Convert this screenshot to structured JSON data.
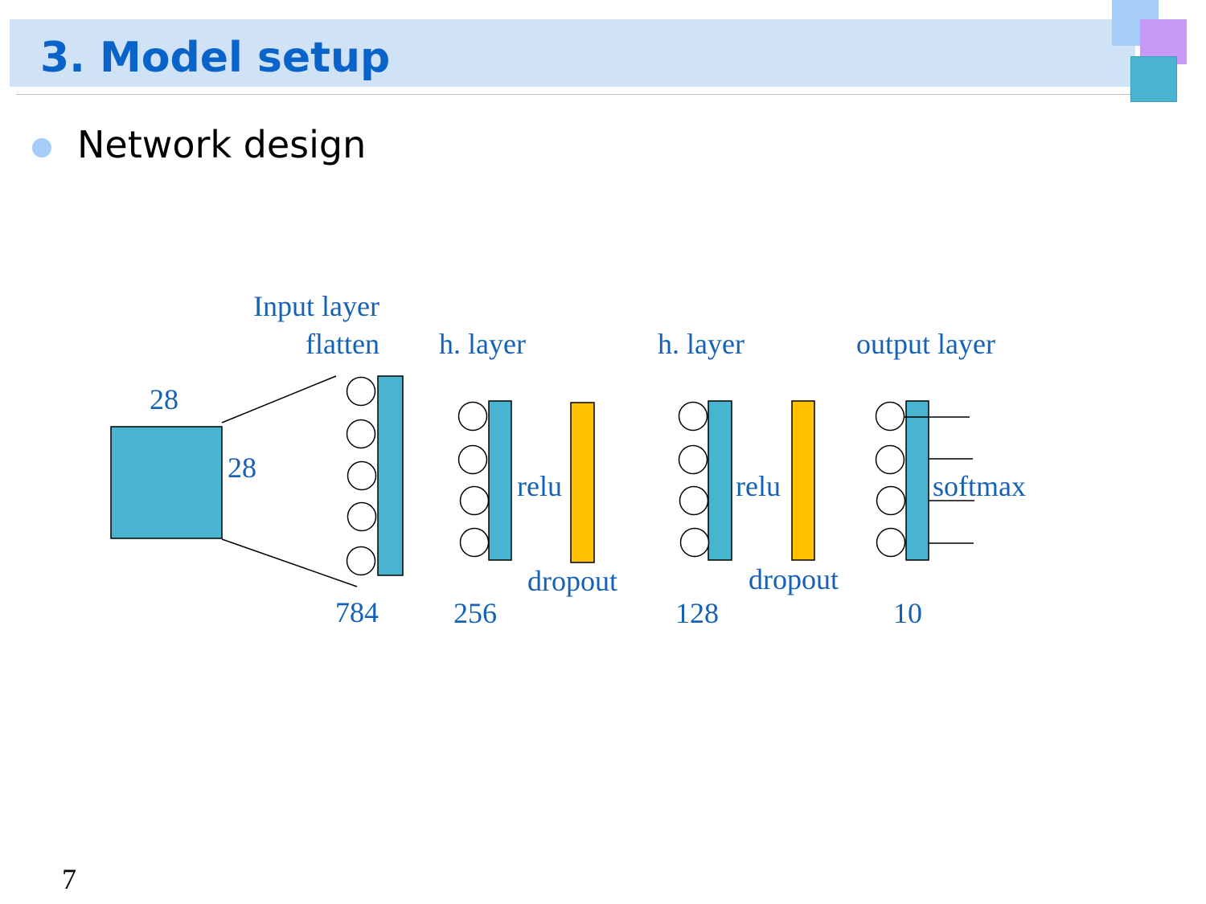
{
  "slide": {
    "title": "3. Model setup",
    "bullet": "Network design",
    "page_number": "7"
  },
  "colors": {
    "title_band": "#cfe2f6",
    "title_text": "#0a63c9",
    "layer_fill": "#48b4d0",
    "dropout_fill": "#ffc000",
    "label_text": "#1561b5",
    "bullet_dot": "#a6cdf7"
  },
  "diagram": {
    "input_image": {
      "width_label": "28",
      "height_label": "28"
    },
    "input_layer": {
      "title_line1": "Input layer",
      "title_line2": "flatten",
      "units": "784"
    },
    "hidden_layer_1": {
      "title": "h. layer",
      "activation": "relu",
      "dropout": "dropout",
      "units": "256"
    },
    "hidden_layer_2": {
      "title": "h. layer",
      "activation": "relu",
      "dropout": "dropout",
      "units": "128"
    },
    "output_layer": {
      "title": "output layer",
      "activation": "softmax",
      "units": "10"
    }
  }
}
